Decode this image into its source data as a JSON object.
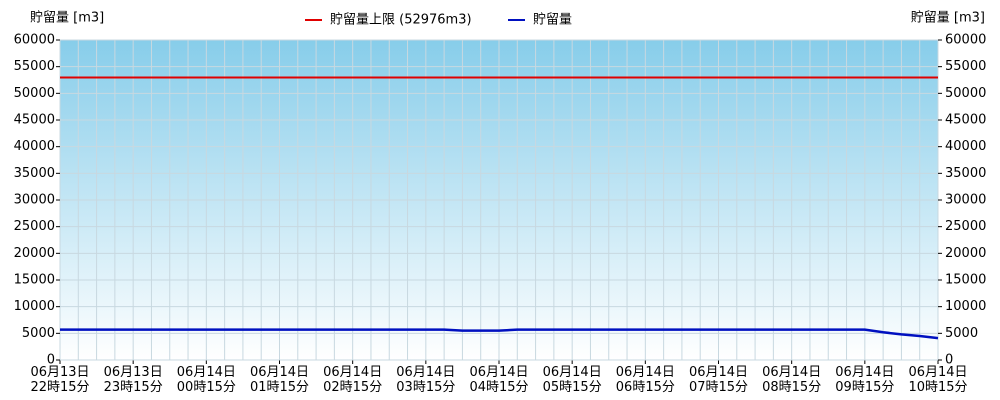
{
  "chart_data": {
    "type": "line",
    "y_label_left": "貯留量 [m3]",
    "y_label_right": "貯留量 [m3]",
    "reference_line": {
      "name": "貯留量上限 (52976m3)",
      "value": 52976,
      "color": "#e00000"
    },
    "categories": [
      "06月13日\n22時15分",
      null,
      null,
      null,
      "06月13日\n23時15分",
      null,
      null,
      null,
      "06月14日\n00時15分",
      null,
      null,
      null,
      "06月14日\n01時15分",
      null,
      null,
      null,
      "06月14日\n02時15分",
      null,
      null,
      null,
      "06月14日\n03時15分",
      null,
      null,
      null,
      "06月14日\n04時15分",
      null,
      null,
      null,
      "06月14日\n05時15分",
      null,
      null,
      null,
      "06月14日\n06時15分",
      null,
      null,
      null,
      "06月14日\n07時15分",
      null,
      null,
      null,
      "06月14日\n08時15分",
      null,
      null,
      null,
      "06月14日\n09時15分",
      null,
      null,
      null,
      "06月14日\n10時15分"
    ],
    "series": [
      {
        "name": "貯留量",
        "color": "#0010c0",
        "values": [
          5700,
          5700,
          5700,
          5700,
          5700,
          5700,
          5700,
          5700,
          5700,
          5700,
          5700,
          5700,
          5700,
          5700,
          5700,
          5700,
          5700,
          5700,
          5700,
          5700,
          5700,
          5700,
          5500,
          5500,
          5500,
          5700,
          5700,
          5700,
          5700,
          5700,
          5700,
          5700,
          5700,
          5700,
          5700,
          5700,
          5700,
          5700,
          5700,
          5700,
          5700,
          5700,
          5700,
          5700,
          5700,
          5200,
          4800,
          4500,
          4100
        ]
      }
    ],
    "ylim": [
      0,
      60000
    ],
    "yticks": [
      0,
      5000,
      10000,
      15000,
      20000,
      25000,
      30000,
      35000,
      40000,
      45000,
      50000,
      55000,
      60000
    ],
    "grid": true
  }
}
